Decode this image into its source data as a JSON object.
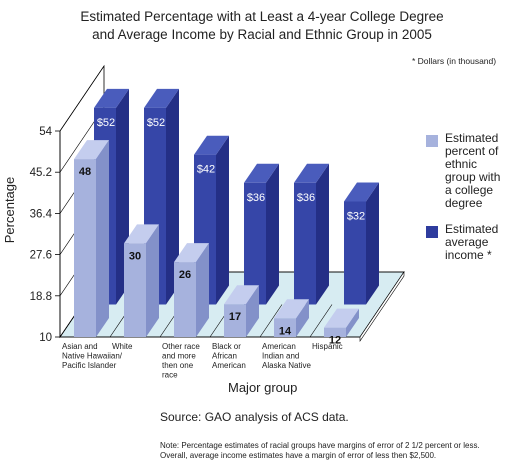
{
  "title": {
    "line1": "Estimated Percentage with at Least a 4-year College Degree",
    "line2": "and Average Income by Racial and Ethnic Group in 2005"
  },
  "dollars_note": "* Dollars (in thousand)",
  "legend": [
    {
      "label": "Estimated\npercent of\nethnic\ngroup with\na college\ndegree",
      "color": "#a6b2dd"
    },
    {
      "label": "Estimated\naverage\nincome *",
      "color": "#2e3c9e"
    }
  ],
  "source": "Source: GAO analysis of ACS data.",
  "note": "Note: Percentage estimates of racial groups have margins of error of 2 1/2 percent or less.  Overall, average income estimates have a margin of error of less then $2,500.",
  "colors": {
    "percent_front": "#a6b2dd",
    "percent_side": "#8391c9",
    "income_front": "#3646a8",
    "income_side": "#242f86",
    "income_top": "#4a5cbc",
    "floor": "#d7ecf2"
  },
  "chart_data": {
    "type": "bar",
    "title": "Estimated Percentage with at Least a 4-year College Degree and Average Income by Racial and Ethnic Group in 2005",
    "xlabel": "Major group",
    "ylabel": "Percentage",
    "ylim": [
      10,
      54
    ],
    "yticks": [
      "54",
      "45.2",
      "36.4",
      "27.6",
      "18.8",
      "10"
    ],
    "ytick_values": [
      54,
      45.2,
      36.4,
      27.6,
      18.8,
      10
    ],
    "categories": [
      "Asian and Native Hawaiian/ Pacific Islander",
      "White",
      "Other race and more then one race",
      "Black or African American",
      "American Indian and Alaska Native",
      "Hispanic"
    ],
    "category_lines": [
      [
        "Asian and",
        "Native Hawaiian/",
        "Pacific Islander"
      ],
      [
        "White"
      ],
      [
        "Other race",
        "and more",
        "then one",
        "race"
      ],
      [
        "Black or",
        "African",
        "American"
      ],
      [
        "American",
        "Indian and",
        "Alaska Native"
      ],
      [
        "Hispanic"
      ]
    ],
    "series": [
      {
        "name": "Estimated percent of ethnic group with a college degree",
        "values": [
          48,
          30,
          26,
          17,
          14,
          12
        ],
        "labels": [
          "48",
          "30",
          "26",
          "17",
          "14",
          "12"
        ]
      },
      {
        "name": "Estimated average income *",
        "values": [
          52,
          52,
          42,
          36,
          36,
          32
        ],
        "labels": [
          "$52",
          "$52",
          "$42",
          "$36",
          "$36",
          "$32"
        ]
      }
    ],
    "legend_position": "right",
    "grid": false
  }
}
